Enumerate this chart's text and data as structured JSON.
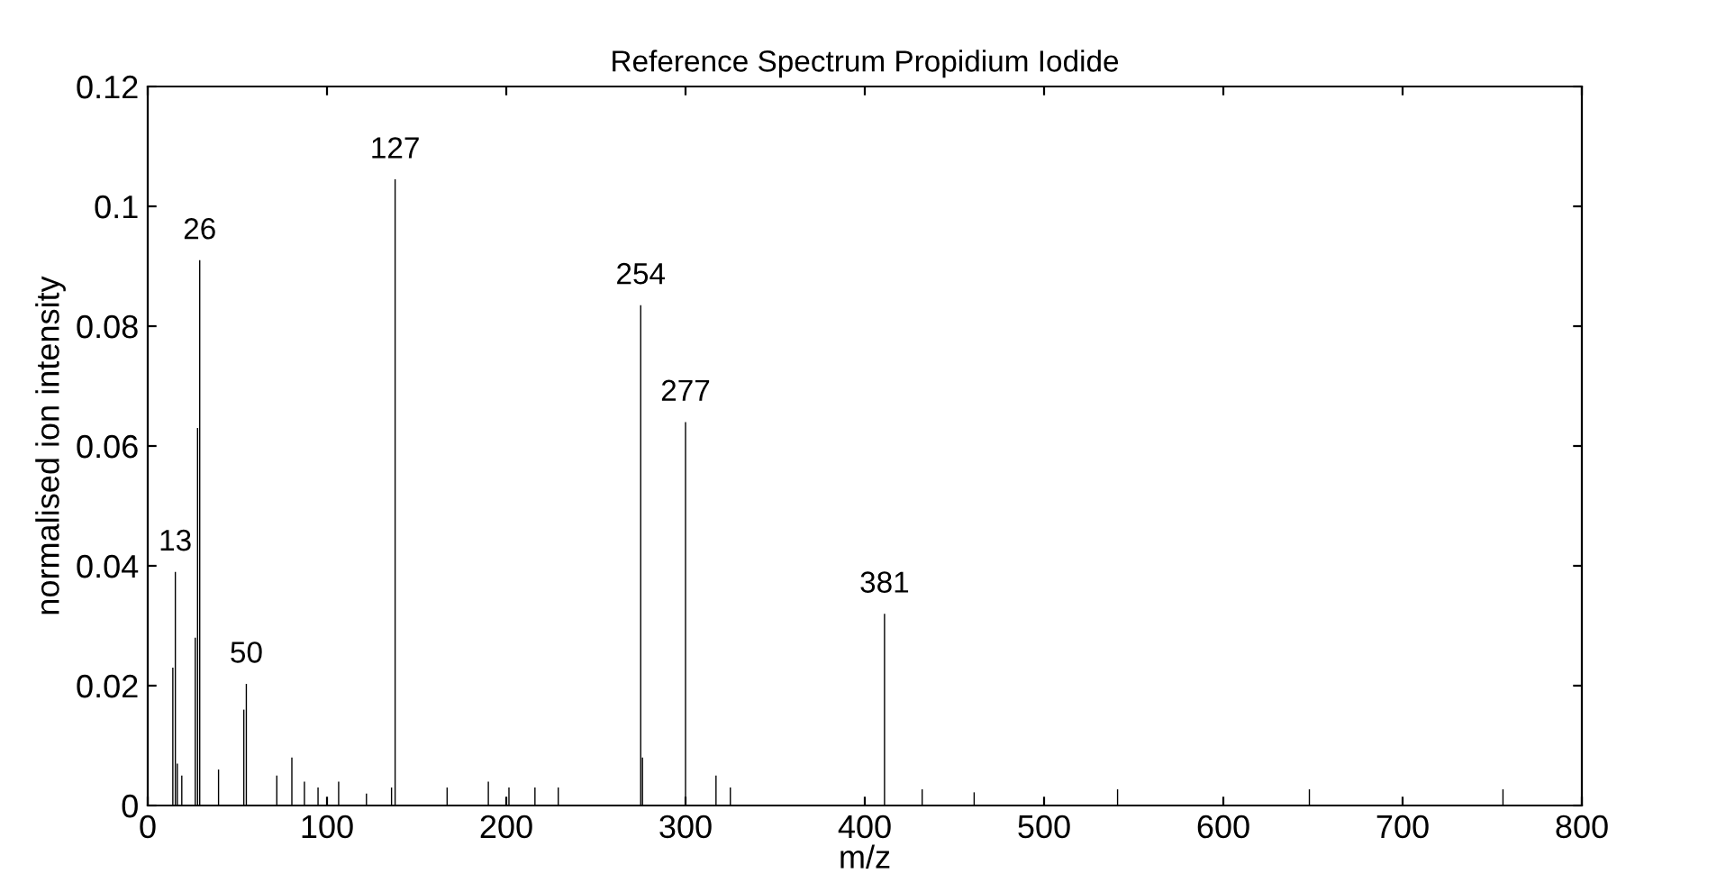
{
  "chart_data": {
    "type": "bar",
    "title": "Reference Spectrum Propidium Iodide",
    "xlabel": "m/z",
    "ylabel": "normalised ion intensity",
    "x": [
      14,
      15.4,
      16.5,
      19,
      26.5,
      27.8,
      29,
      39.5,
      53.6,
      55,
      72,
      80.4,
      87.4,
      95,
      106.5,
      122,
      136,
      138,
      167,
      190,
      201.5,
      216,
      229,
      275,
      276,
      300,
      317,
      325,
      411,
      432,
      461,
      541,
      648,
      756
    ],
    "series": [
      {
        "color": "#000000",
        "values": [
          0.023,
          0.039,
          0.007,
          0.005,
          0.028,
          0.063,
          0.091,
          0.006,
          0.016,
          0.0203,
          0.005,
          0.008,
          0.004,
          0.003,
          0.004,
          0.002,
          0.003,
          0.1045,
          0.003,
          0.004,
          0.003,
          0.003,
          0.003,
          0.0835,
          0.008,
          0.064,
          0.005,
          0.003,
          0.032,
          0.0027,
          0.0022,
          0.0027,
          0.0027,
          0.0027
        ]
      }
    ],
    "annotations": [
      {
        "text": "13",
        "x": 15.4,
        "y": 0.039
      },
      {
        "text": "26",
        "x": 29,
        "y": 0.091
      },
      {
        "text": "50",
        "x": 55,
        "y": 0.0203
      },
      {
        "text": "127",
        "x": 138,
        "y": 0.1045
      },
      {
        "text": "254",
        "x": 275,
        "y": 0.0835
      },
      {
        "text": "277",
        "x": 300,
        "y": 0.064
      },
      {
        "text": "381",
        "x": 411,
        "y": 0.032
      }
    ],
    "xlim": [
      0,
      800
    ],
    "ylim": [
      0,
      0.12
    ],
    "xticks": [
      0,
      100,
      200,
      300,
      400,
      500,
      600,
      700,
      800
    ],
    "yticks": [
      0,
      0.02,
      0.04,
      0.06,
      0.08,
      0.1,
      0.12
    ],
    "grid": false
  }
}
